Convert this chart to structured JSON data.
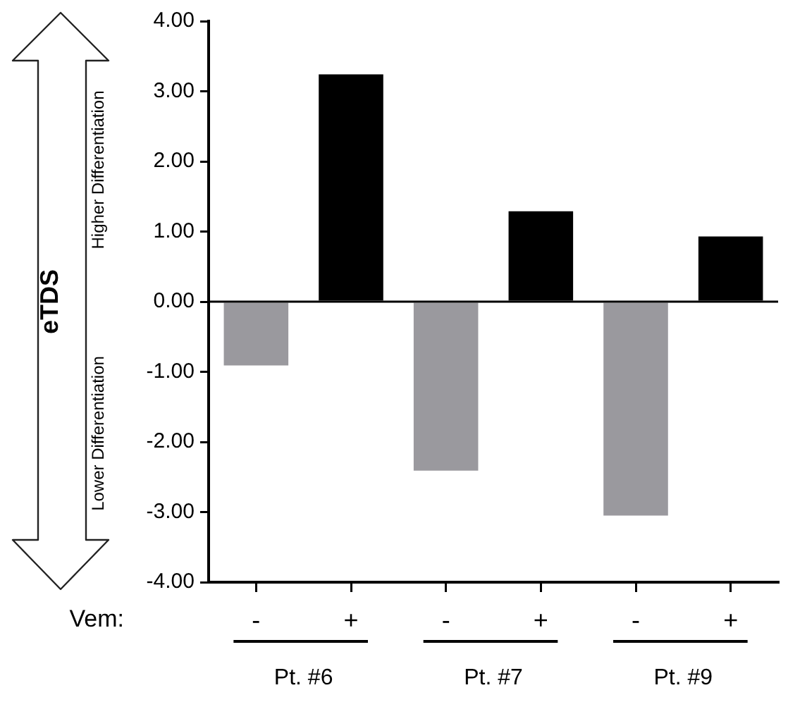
{
  "chart_data": {
    "type": "bar",
    "categories": [
      "-",
      "+",
      "-",
      "+",
      "-",
      "+"
    ],
    "values": [
      -0.91,
      3.24,
      -2.41,
      1.29,
      -3.05,
      0.93
    ],
    "colors": [
      "#9a999e",
      "#000000",
      "#9a999e",
      "#000000",
      "#9a999e",
      "#000000"
    ],
    "xlabel": "Vem:",
    "ylabel": "eTDS",
    "annotations": [
      "Pt. #6",
      "Pt. #7",
      "Pt. #9",
      "Higher Differentiation",
      "Lower Differentiation"
    ],
    "ylim": [
      -4,
      4
    ],
    "yticks": [
      {
        "value": 4,
        "label": "4.00"
      },
      {
        "value": 3,
        "label": "3.00"
      },
      {
        "value": 2,
        "label": "2.00"
      },
      {
        "value": 1,
        "label": "1.00"
      },
      {
        "value": 0,
        "label": "0.00"
      },
      {
        "value": -1,
        "label": "-1.00"
      },
      {
        "value": -2,
        "label": "-2.00"
      },
      {
        "value": -3,
        "label": "-3.00"
      },
      {
        "value": -4,
        "label": "-4.00"
      }
    ],
    "ref_lines": [
      {
        "axis": "y",
        "value": 0,
        "color": "#000000"
      }
    ],
    "grid": false,
    "legend": false
  }
}
